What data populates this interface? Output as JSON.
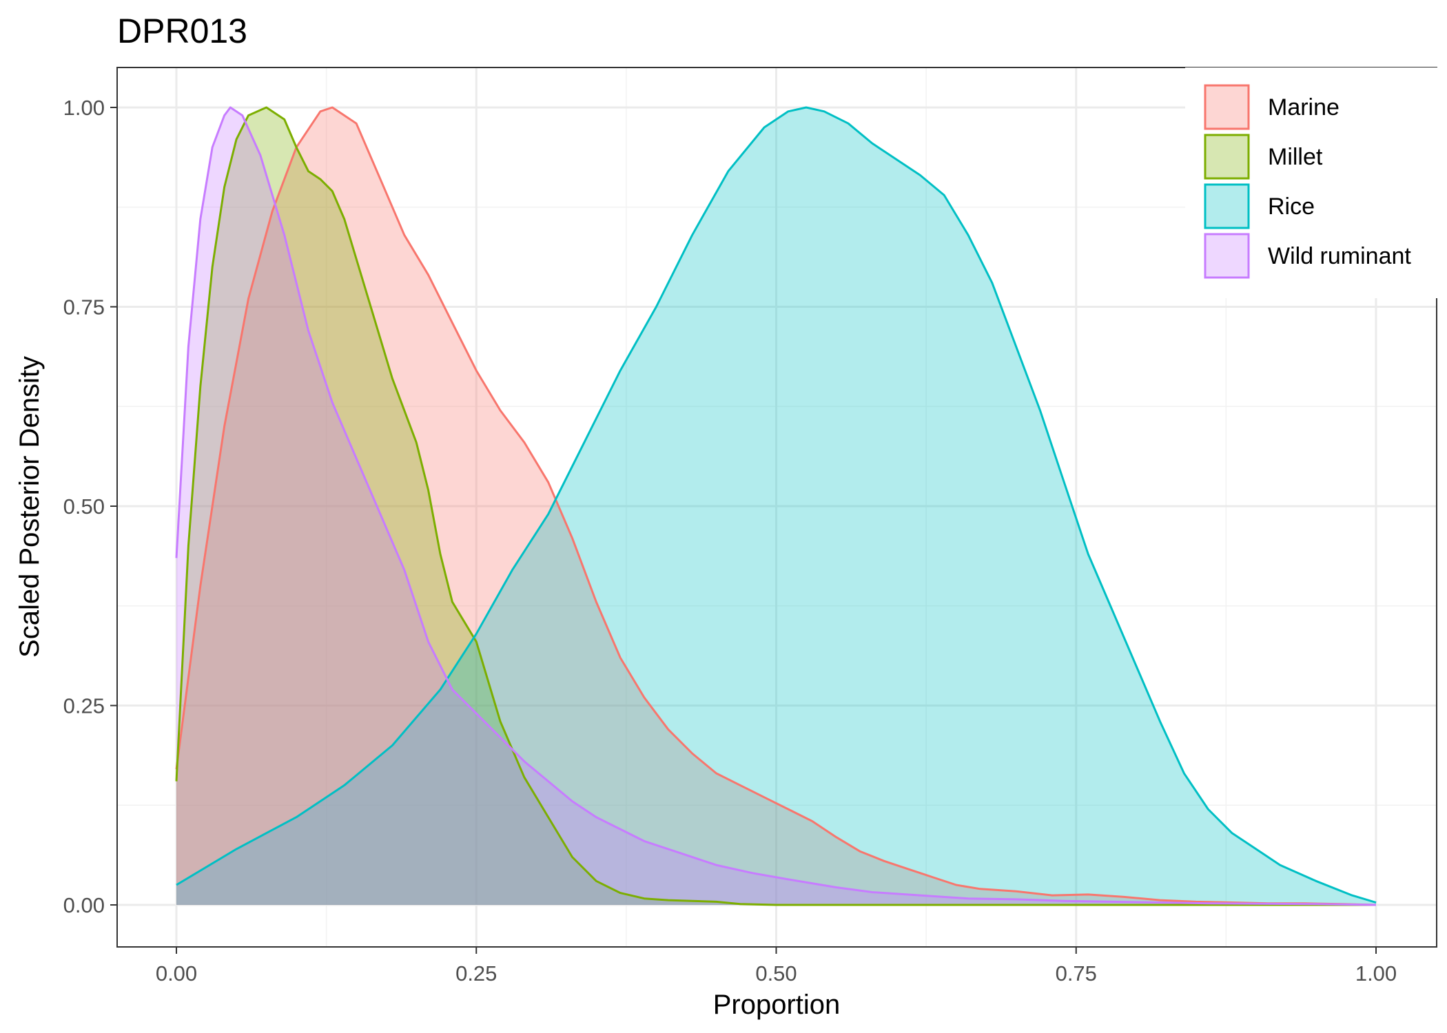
{
  "chart_data": {
    "type": "area",
    "title": "DPR013",
    "xlabel": "Proportion",
    "ylabel": "Scaled Posterior Density",
    "xlim": [
      -0.05,
      1.05
    ],
    "ylim": [
      -0.05,
      1.05
    ],
    "x_ticks": [
      0.0,
      0.25,
      0.5,
      0.75,
      1.0
    ],
    "x_tick_labels": [
      "0.00",
      "0.25",
      "0.50",
      "0.75",
      "1.00"
    ],
    "y_ticks": [
      0.0,
      0.25,
      0.5,
      0.75,
      1.0
    ],
    "y_tick_labels": [
      "0.00",
      "0.25",
      "0.50",
      "0.75",
      "1.00"
    ],
    "grid": true,
    "legend_position": "top-right",
    "series": [
      {
        "name": "Marine",
        "color": "#F8766D",
        "points": [
          [
            0,
            0.17
          ],
          [
            0.02,
            0.4
          ],
          [
            0.04,
            0.6
          ],
          [
            0.06,
            0.76
          ],
          [
            0.08,
            0.87
          ],
          [
            0.1,
            0.95
          ],
          [
            0.12,
            0.995
          ],
          [
            0.13,
            1.0
          ],
          [
            0.15,
            0.98
          ],
          [
            0.17,
            0.91
          ],
          [
            0.19,
            0.84
          ],
          [
            0.21,
            0.79
          ],
          [
            0.23,
            0.73
          ],
          [
            0.25,
            0.67
          ],
          [
            0.27,
            0.62
          ],
          [
            0.29,
            0.58
          ],
          [
            0.31,
            0.53
          ],
          [
            0.33,
            0.46
          ],
          [
            0.35,
            0.38
          ],
          [
            0.37,
            0.31
          ],
          [
            0.39,
            0.26
          ],
          [
            0.41,
            0.22
          ],
          [
            0.43,
            0.19
          ],
          [
            0.45,
            0.165
          ],
          [
            0.47,
            0.15
          ],
          [
            0.49,
            0.135
          ],
          [
            0.51,
            0.12
          ],
          [
            0.53,
            0.105
          ],
          [
            0.55,
            0.085
          ],
          [
            0.57,
            0.067
          ],
          [
            0.59,
            0.055
          ],
          [
            0.61,
            0.045
          ],
          [
            0.63,
            0.035
          ],
          [
            0.65,
            0.025
          ],
          [
            0.67,
            0.02
          ],
          [
            0.7,
            0.017
          ],
          [
            0.73,
            0.012
          ],
          [
            0.76,
            0.013
          ],
          [
            0.79,
            0.01
          ],
          [
            0.82,
            0.006
          ],
          [
            0.85,
            0.004
          ],
          [
            0.88,
            0.003
          ],
          [
            0.91,
            0.002
          ],
          [
            0.94,
            0.002
          ],
          [
            0.97,
            0.001
          ],
          [
            1.0,
            0.0
          ]
        ]
      },
      {
        "name": "Millet",
        "color": "#7CAE00",
        "points": [
          [
            0,
            0.155
          ],
          [
            0.01,
            0.45
          ],
          [
            0.02,
            0.65
          ],
          [
            0.03,
            0.8
          ],
          [
            0.04,
            0.9
          ],
          [
            0.05,
            0.96
          ],
          [
            0.06,
            0.99
          ],
          [
            0.075,
            1.0
          ],
          [
            0.09,
            0.985
          ],
          [
            0.1,
            0.95
          ],
          [
            0.11,
            0.92
          ],
          [
            0.12,
            0.91
          ],
          [
            0.13,
            0.895
          ],
          [
            0.14,
            0.86
          ],
          [
            0.16,
            0.76
          ],
          [
            0.18,
            0.66
          ],
          [
            0.2,
            0.58
          ],
          [
            0.21,
            0.52
          ],
          [
            0.22,
            0.44
          ],
          [
            0.23,
            0.38
          ],
          [
            0.25,
            0.33
          ],
          [
            0.27,
            0.23
          ],
          [
            0.29,
            0.16
          ],
          [
            0.31,
            0.11
          ],
          [
            0.33,
            0.06
          ],
          [
            0.35,
            0.03
          ],
          [
            0.37,
            0.015
          ],
          [
            0.39,
            0.008
          ],
          [
            0.41,
            0.006
          ],
          [
            0.43,
            0.005
          ],
          [
            0.45,
            0.004
          ],
          [
            0.47,
            0.001
          ],
          [
            0.5,
            0.0
          ],
          [
            0.6,
            0.0
          ],
          [
            0.7,
            0.0
          ],
          [
            0.8,
            0.0
          ],
          [
            0.9,
            0.0
          ],
          [
            1.0,
            0.0
          ]
        ]
      },
      {
        "name": "Rice",
        "color": "#00BFC4",
        "points": [
          [
            0,
            0.025
          ],
          [
            0.05,
            0.07
          ],
          [
            0.1,
            0.11
          ],
          [
            0.14,
            0.15
          ],
          [
            0.18,
            0.2
          ],
          [
            0.22,
            0.27
          ],
          [
            0.25,
            0.34
          ],
          [
            0.28,
            0.42
          ],
          [
            0.31,
            0.49
          ],
          [
            0.34,
            0.58
          ],
          [
            0.37,
            0.67
          ],
          [
            0.4,
            0.75
          ],
          [
            0.43,
            0.84
          ],
          [
            0.46,
            0.92
          ],
          [
            0.49,
            0.975
          ],
          [
            0.51,
            0.995
          ],
          [
            0.525,
            1.0
          ],
          [
            0.54,
            0.995
          ],
          [
            0.56,
            0.98
          ],
          [
            0.58,
            0.955
          ],
          [
            0.6,
            0.935
          ],
          [
            0.62,
            0.915
          ],
          [
            0.64,
            0.89
          ],
          [
            0.66,
            0.84
          ],
          [
            0.68,
            0.78
          ],
          [
            0.7,
            0.7
          ],
          [
            0.72,
            0.62
          ],
          [
            0.74,
            0.53
          ],
          [
            0.76,
            0.44
          ],
          [
            0.78,
            0.37
          ],
          [
            0.8,
            0.3
          ],
          [
            0.82,
            0.23
          ],
          [
            0.84,
            0.165
          ],
          [
            0.86,
            0.12
          ],
          [
            0.88,
            0.09
          ],
          [
            0.9,
            0.07
          ],
          [
            0.92,
            0.05
          ],
          [
            0.95,
            0.03
          ],
          [
            0.98,
            0.012
          ],
          [
            1.0,
            0.003
          ]
        ]
      },
      {
        "name": "Wild ruminant",
        "color": "#C77CFF",
        "points": [
          [
            0,
            0.435
          ],
          [
            0.01,
            0.7
          ],
          [
            0.02,
            0.86
          ],
          [
            0.03,
            0.95
          ],
          [
            0.04,
            0.99
          ],
          [
            0.045,
            1.0
          ],
          [
            0.055,
            0.99
          ],
          [
            0.07,
            0.94
          ],
          [
            0.09,
            0.84
          ],
          [
            0.11,
            0.72
          ],
          [
            0.13,
            0.63
          ],
          [
            0.15,
            0.56
          ],
          [
            0.17,
            0.49
          ],
          [
            0.19,
            0.42
          ],
          [
            0.21,
            0.33
          ],
          [
            0.23,
            0.27
          ],
          [
            0.25,
            0.24
          ],
          [
            0.27,
            0.21
          ],
          [
            0.29,
            0.18
          ],
          [
            0.31,
            0.155
          ],
          [
            0.33,
            0.13
          ],
          [
            0.35,
            0.11
          ],
          [
            0.37,
            0.095
          ],
          [
            0.39,
            0.08
          ],
          [
            0.42,
            0.065
          ],
          [
            0.45,
            0.05
          ],
          [
            0.48,
            0.04
          ],
          [
            0.51,
            0.032
          ],
          [
            0.55,
            0.022
          ],
          [
            0.58,
            0.016
          ],
          [
            0.62,
            0.012
          ],
          [
            0.66,
            0.008
          ],
          [
            0.7,
            0.007
          ],
          [
            0.74,
            0.005
          ],
          [
            0.78,
            0.004
          ],
          [
            0.82,
            0.003
          ],
          [
            0.86,
            0.002
          ],
          [
            0.9,
            0.0015
          ],
          [
            0.95,
            0.001
          ],
          [
            1.0,
            0.0
          ]
        ]
      }
    ]
  }
}
